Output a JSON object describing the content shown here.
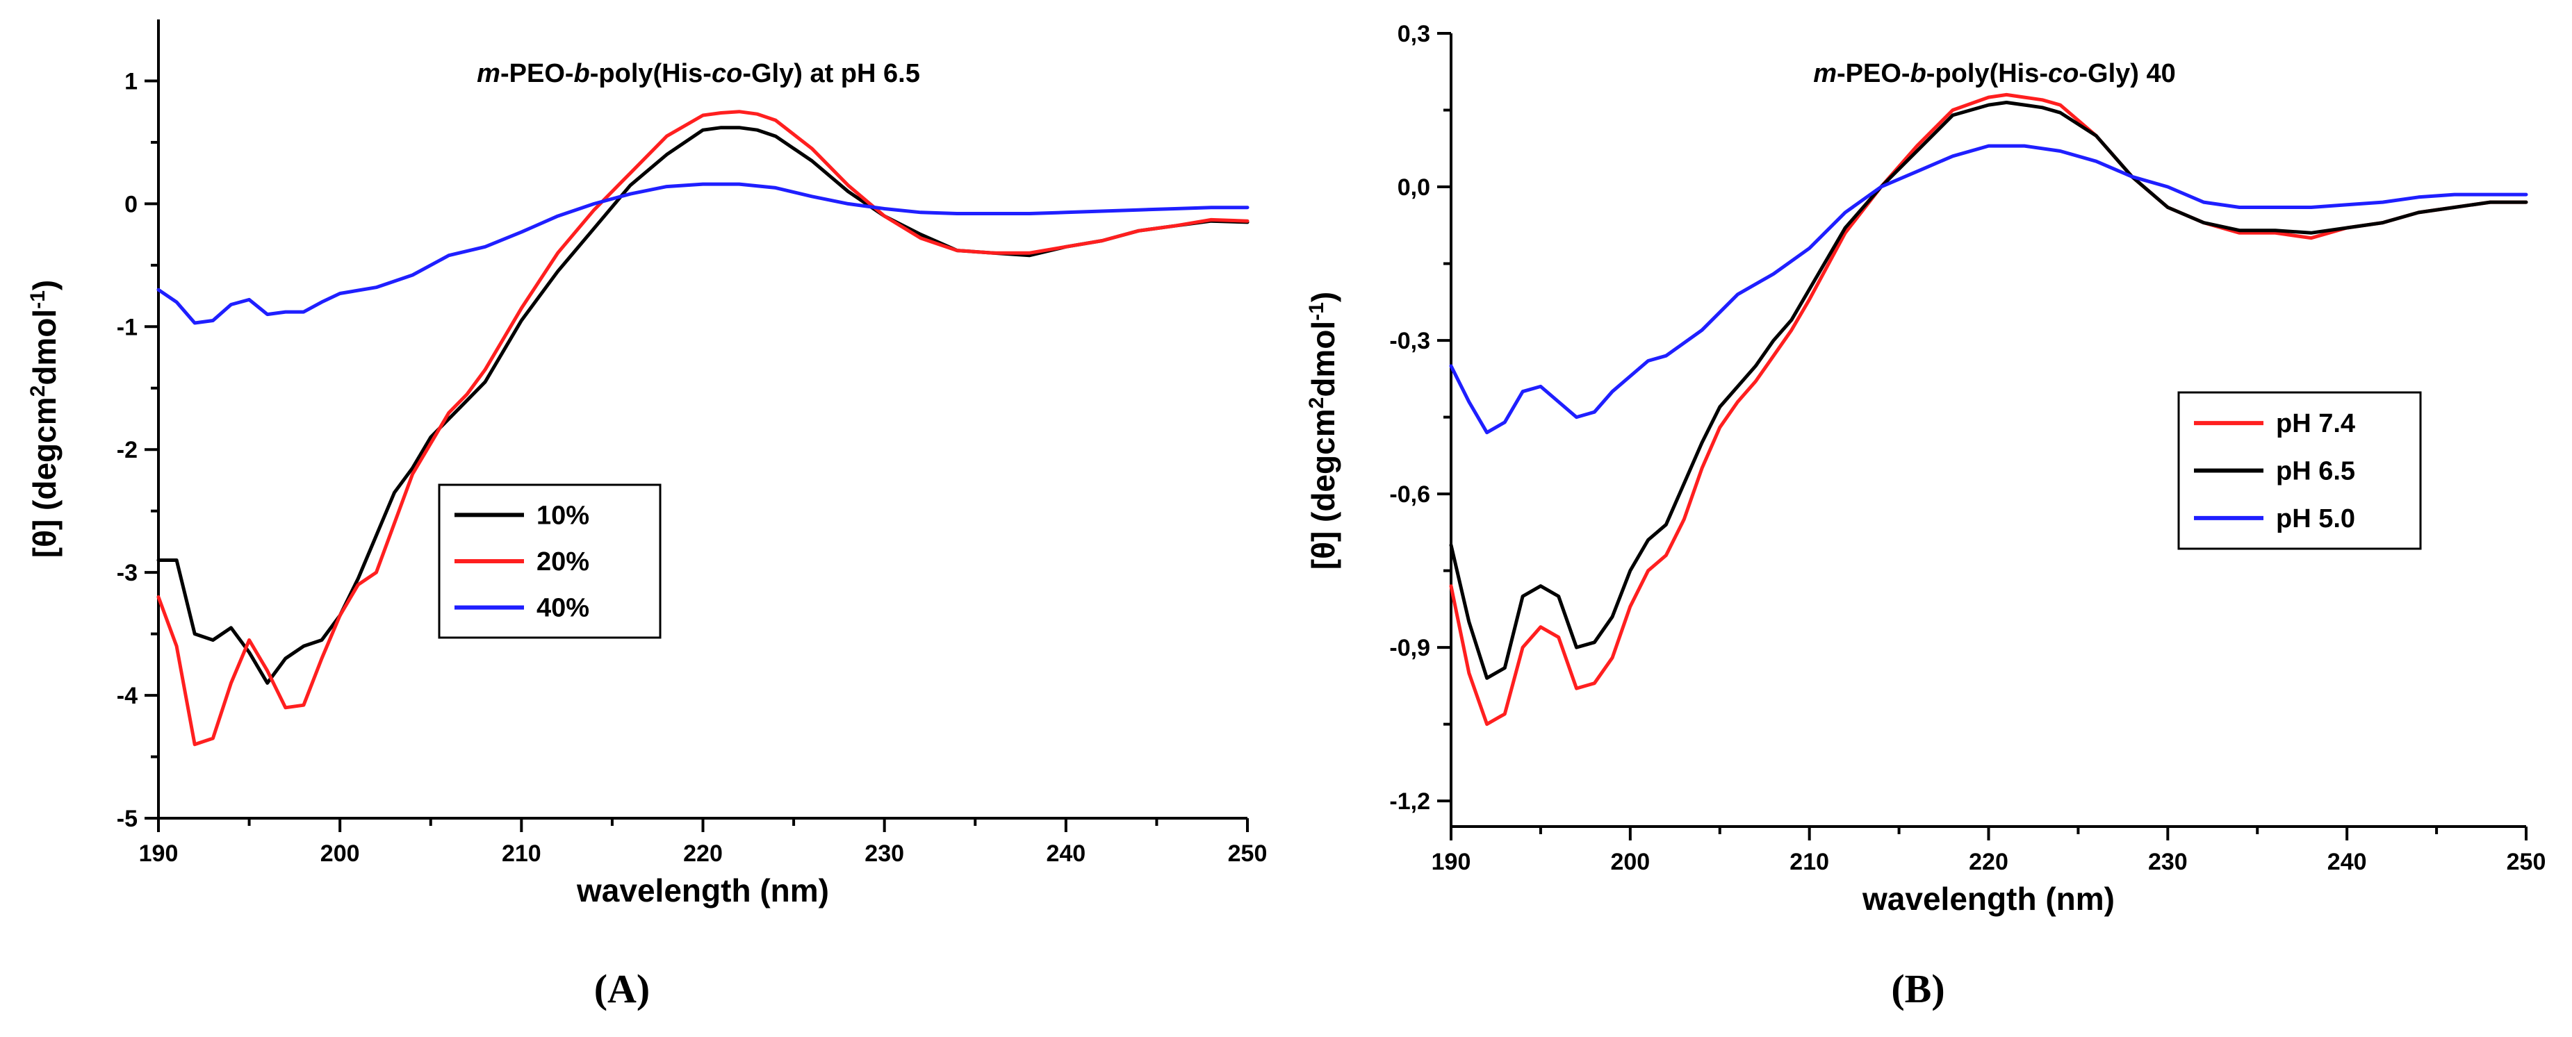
{
  "chart_data": [
    {
      "panel_label": "(A)",
      "type": "line",
      "title": {
        "italic1": "m",
        "part1": "-PEO-",
        "italic2": "b",
        "part2": "-poly(His-",
        "italic3": "co",
        "part3": "-Gly) at pH 6.5"
      },
      "xlabel": "wavelength (nm)",
      "ylabel": "[θ] (degcm²dmol⁻¹)",
      "ylabel_parts": {
        "pre": "[θ] (degcm",
        "sup1": "2",
        "mid": "dmol",
        "sup2": "-1",
        "post": ")"
      },
      "xlim": [
        190,
        250
      ],
      "ylim": [
        -5,
        1.5
      ],
      "xticks": [
        190,
        200,
        210,
        220,
        230,
        240,
        250
      ],
      "xtick_labels": [
        "190",
        "200",
        "210",
        "220",
        "230",
        "240",
        "250"
      ],
      "yticks": [
        -5,
        -4,
        -3,
        -2,
        -1,
        0,
        1
      ],
      "ytick_labels": [
        "-5",
        "-4",
        "-3",
        "-2",
        "-1",
        "0",
        "1"
      ],
      "legend_position": "center-left",
      "series": [
        {
          "name": "10%",
          "color": "#000000",
          "x": [
            190,
            191,
            192,
            193,
            194,
            195,
            196,
            197,
            198,
            199,
            200,
            201,
            202,
            203,
            204,
            205,
            206,
            207,
            208,
            209,
            210,
            212,
            214,
            216,
            218,
            220,
            221,
            222,
            223,
            224,
            226,
            228,
            230,
            232,
            234,
            236,
            238,
            240,
            242,
            244,
            246,
            248,
            250
          ],
          "y": [
            -2.9,
            -2.9,
            -3.5,
            -3.55,
            -3.45,
            -3.65,
            -3.9,
            -3.7,
            -3.6,
            -3.55,
            -3.35,
            -3.05,
            -2.7,
            -2.35,
            -2.15,
            -1.9,
            -1.75,
            -1.6,
            -1.45,
            -1.2,
            -0.95,
            -0.55,
            -0.2,
            0.15,
            0.4,
            0.6,
            0.62,
            0.62,
            0.6,
            0.55,
            0.35,
            0.1,
            -0.1,
            -0.25,
            -0.38,
            -0.4,
            -0.42,
            -0.35,
            -0.3,
            -0.22,
            -0.18,
            -0.14,
            -0.15
          ]
        },
        {
          "name": "20%",
          "color": "#ff1f1f",
          "x": [
            190,
            191,
            192,
            193,
            194,
            195,
            196,
            197,
            198,
            199,
            200,
            201,
            202,
            203,
            204,
            205,
            206,
            207,
            208,
            209,
            210,
            212,
            214,
            216,
            218,
            220,
            221,
            222,
            223,
            224,
            226,
            228,
            230,
            232,
            234,
            236,
            238,
            240,
            242,
            244,
            246,
            248,
            250
          ],
          "y": [
            -3.2,
            -3.6,
            -4.4,
            -4.35,
            -3.9,
            -3.55,
            -3.8,
            -4.1,
            -4.08,
            -3.7,
            -3.35,
            -3.1,
            -3.0,
            -2.6,
            -2.2,
            -1.95,
            -1.7,
            -1.55,
            -1.35,
            -1.1,
            -0.85,
            -0.4,
            -0.05,
            0.25,
            0.55,
            0.72,
            0.74,
            0.75,
            0.73,
            0.68,
            0.45,
            0.15,
            -0.1,
            -0.28,
            -0.38,
            -0.4,
            -0.4,
            -0.35,
            -0.3,
            -0.22,
            -0.18,
            -0.13,
            -0.14
          ]
        },
        {
          "name": "40%",
          "color": "#1f1fff",
          "x": [
            190,
            191,
            192,
            193,
            194,
            195,
            196,
            197,
            198,
            199,
            200,
            202,
            204,
            206,
            208,
            210,
            212,
            214,
            216,
            218,
            220,
            221,
            222,
            224,
            226,
            228,
            230,
            232,
            234,
            236,
            238,
            240,
            242,
            244,
            246,
            248,
            250
          ],
          "y": [
            -0.7,
            -0.8,
            -0.97,
            -0.95,
            -0.82,
            -0.78,
            -0.9,
            -0.88,
            -0.88,
            -0.8,
            -0.73,
            -0.68,
            -0.58,
            -0.42,
            -0.35,
            -0.23,
            -0.1,
            0.0,
            0.08,
            0.14,
            0.16,
            0.16,
            0.16,
            0.13,
            0.06,
            0.0,
            -0.04,
            -0.07,
            -0.08,
            -0.08,
            -0.08,
            -0.07,
            -0.06,
            -0.05,
            -0.04,
            -0.03,
            -0.03
          ]
        }
      ]
    },
    {
      "panel_label": "(B)",
      "type": "line",
      "title": {
        "italic1": "m",
        "part1": "-PEO-",
        "italic2": "b",
        "part2": "-poly(His-",
        "italic3": "co",
        "part3": "-Gly) 40"
      },
      "xlabel": "wavelength (nm)",
      "ylabel": "[θ] (degcm²dmol⁻¹)",
      "ylabel_parts": {
        "pre": "[θ] (degcm",
        "sup1": "2",
        "mid": "dmol",
        "sup2": "-1",
        "post": ")"
      },
      "xlim": [
        190,
        250
      ],
      "ylim": [
        -1.25,
        0.3
      ],
      "xticks": [
        190,
        200,
        210,
        220,
        230,
        240,
        250
      ],
      "xtick_labels": [
        "190",
        "200",
        "210",
        "220",
        "230",
        "240",
        "250"
      ],
      "yticks": [
        -1.2,
        -0.9,
        -0.6,
        -0.3,
        0.0,
        0.3
      ],
      "ytick_labels": [
        "-1,2",
        "-0,9",
        "-0,6",
        "-0,3",
        "0,0",
        "0,3"
      ],
      "legend_position": "center-right",
      "series": [
        {
          "name": "pH 7.4",
          "color": "#ff1f1f",
          "x": [
            190,
            191,
            192,
            193,
            194,
            195,
            196,
            197,
            198,
            199,
            200,
            201,
            202,
            203,
            204,
            205,
            206,
            207,
            208,
            209,
            210,
            212,
            214,
            216,
            218,
            220,
            221,
            222,
            223,
            224,
            226,
            228,
            230,
            232,
            234,
            236,
            238,
            240,
            242,
            244,
            246,
            248,
            250
          ],
          "y": [
            -0.78,
            -0.95,
            -1.05,
            -1.03,
            -0.9,
            -0.86,
            -0.88,
            -0.98,
            -0.97,
            -0.92,
            -0.82,
            -0.75,
            -0.72,
            -0.65,
            -0.55,
            -0.47,
            -0.42,
            -0.38,
            -0.33,
            -0.28,
            -0.22,
            -0.09,
            0.0,
            0.08,
            0.15,
            0.175,
            0.18,
            0.175,
            0.17,
            0.16,
            0.1,
            0.02,
            -0.04,
            -0.07,
            -0.09,
            -0.09,
            -0.1,
            -0.08,
            -0.07,
            -0.05,
            -0.04,
            -0.03,
            -0.03
          ]
        },
        {
          "name": "pH 6.5",
          "color": "#000000",
          "x": [
            190,
            191,
            192,
            193,
            194,
            195,
            196,
            197,
            198,
            199,
            200,
            201,
            202,
            203,
            204,
            205,
            206,
            207,
            208,
            209,
            210,
            212,
            214,
            216,
            218,
            220,
            221,
            222,
            223,
            224,
            226,
            228,
            230,
            232,
            234,
            236,
            238,
            240,
            242,
            244,
            246,
            248,
            250
          ],
          "y": [
            -0.7,
            -0.85,
            -0.96,
            -0.94,
            -0.8,
            -0.78,
            -0.8,
            -0.9,
            -0.89,
            -0.84,
            -0.75,
            -0.69,
            -0.66,
            -0.58,
            -0.5,
            -0.43,
            -0.39,
            -0.35,
            -0.3,
            -0.26,
            -0.2,
            -0.08,
            0.0,
            0.07,
            0.14,
            0.16,
            0.165,
            0.16,
            0.155,
            0.145,
            0.1,
            0.02,
            -0.04,
            -0.07,
            -0.085,
            -0.085,
            -0.09,
            -0.08,
            -0.07,
            -0.05,
            -0.04,
            -0.03,
            -0.03
          ]
        },
        {
          "name": "pH 5.0",
          "color": "#1f1fff",
          "x": [
            190,
            191,
            192,
            193,
            194,
            195,
            196,
            197,
            198,
            199,
            200,
            201,
            202,
            204,
            206,
            208,
            210,
            212,
            214,
            216,
            218,
            220,
            221,
            222,
            224,
            226,
            228,
            230,
            232,
            234,
            236,
            238,
            240,
            242,
            244,
            246,
            248,
            250
          ],
          "y": [
            -0.35,
            -0.42,
            -0.48,
            -0.46,
            -0.4,
            -0.39,
            -0.42,
            -0.45,
            -0.44,
            -0.4,
            -0.37,
            -0.34,
            -0.33,
            -0.28,
            -0.21,
            -0.17,
            -0.12,
            -0.05,
            0.0,
            0.03,
            0.06,
            0.08,
            0.08,
            0.08,
            0.07,
            0.05,
            0.02,
            0.0,
            -0.03,
            -0.04,
            -0.04,
            -0.04,
            -0.035,
            -0.03,
            -0.02,
            -0.015,
            -0.015,
            -0.015
          ]
        }
      ]
    }
  ]
}
